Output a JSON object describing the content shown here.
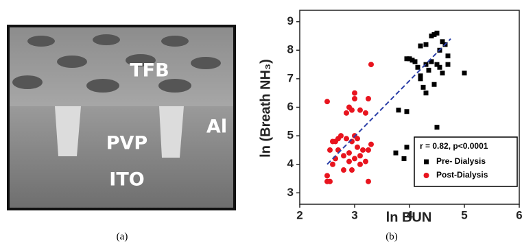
{
  "panel_a": {
    "labels": [
      "TFB",
      "PVP",
      "Al",
      "ITO"
    ],
    "caption": "(a)"
  },
  "panel_b_caption": "(b)",
  "chart_data": {
    "type": "scatter",
    "x_label": "ln BUN",
    "y_label": "ln (Breath NH₃)",
    "xlim": [
      2,
      6
    ],
    "ylim": [
      2.6,
      9.4
    ],
    "xticks": [
      2,
      3,
      4,
      5,
      6
    ],
    "yticks": [
      3,
      4,
      5,
      6,
      7,
      8,
      9
    ],
    "annotation": "r = 0.82, p<0.0001",
    "legend": "lower right",
    "series": [
      {
        "name": "Pre- Dialysis",
        "color": "#000000",
        "marker": "square",
        "x": [
          4.5,
          4.45,
          4.4,
          4.6,
          4.65,
          4.3,
          4.2,
          4.55,
          4.7,
          4.0,
          3.95,
          4.05,
          4.1,
          4.15,
          4.3,
          4.35,
          4.5,
          4.55,
          4.4,
          4.6,
          4.2,
          4.25,
          4.3,
          4.45,
          4.7,
          5.0,
          3.8,
          3.95,
          4.5,
          3.75,
          3.9,
          3.95,
          4.2
        ],
        "values": [
          8.6,
          8.55,
          8.5,
          8.3,
          8.2,
          8.2,
          8.15,
          8.0,
          7.8,
          7.7,
          7.7,
          7.65,
          7.6,
          7.4,
          7.5,
          7.3,
          7.5,
          7.4,
          7.6,
          7.2,
          7.1,
          6.7,
          6.5,
          6.8,
          7.5,
          7.2,
          5.9,
          5.85,
          5.3,
          4.4,
          4.2,
          4.6,
          7.0
        ]
      },
      {
        "name": "Post-Dialysis",
        "color": "#e8141e",
        "marker": "circle",
        "x": [
          2.5,
          3.3,
          3.0,
          3.0,
          3.25,
          2.9,
          2.85,
          2.95,
          3.1,
          3.2,
          2.75,
          2.7,
          2.65,
          2.85,
          2.95,
          3.05,
          3.0,
          2.6,
          2.55,
          2.6,
          2.65,
          2.7,
          2.8,
          2.9,
          3.0,
          3.1,
          3.15,
          3.25,
          3.2,
          2.8,
          2.9,
          2.95,
          3.1,
          3.25,
          2.5,
          2.55,
          2.5,
          3.3,
          3.05
        ],
        "values": [
          6.2,
          7.5,
          6.5,
          6.3,
          6.3,
          6.0,
          5.8,
          5.9,
          5.9,
          5.8,
          5.0,
          4.9,
          4.8,
          4.9,
          4.8,
          4.9,
          5.0,
          4.8,
          4.5,
          4.0,
          4.2,
          4.5,
          4.3,
          4.4,
          4.2,
          4.3,
          4.5,
          4.5,
          4.1,
          3.8,
          4.1,
          3.8,
          4.0,
          3.4,
          3.4,
          3.4,
          3.6,
          4.7,
          4.6
        ]
      }
    ],
    "fit": {
      "color": "#2a3ea8",
      "x": [
        2.5,
        4.75
      ],
      "values": [
        4.0,
        8.4
      ]
    }
  }
}
